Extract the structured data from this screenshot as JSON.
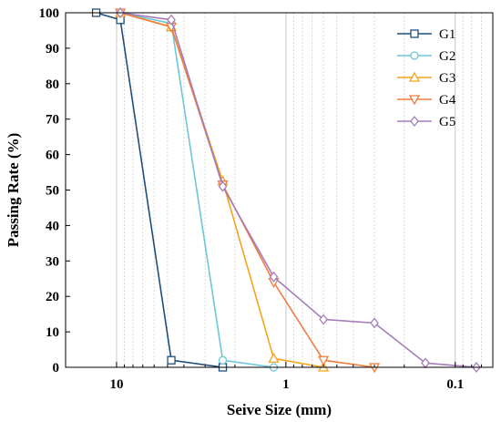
{
  "chart_data": {
    "type": "line",
    "xlabel": "Seive Size (mm)",
    "ylabel": "Passing Rate  (%)",
    "x_scale": "log",
    "x_reversed": true,
    "xlim": [
      20,
      0.06
    ],
    "ylim": [
      0,
      100
    ],
    "x_ticks": [
      {
        "value": 10,
        "label": "10"
      },
      {
        "value": 1,
        "label": "1"
      },
      {
        "value": 0.1,
        "label": "0.1"
      }
    ],
    "y_ticks": [
      0,
      10,
      20,
      30,
      40,
      50,
      60,
      70,
      80,
      90,
      100
    ],
    "grid": "vertical-minor-dotted",
    "legend_position": "top-right",
    "series": [
      {
        "name": "G1",
        "color": "#1f4e79",
        "marker": "square",
        "points": [
          [
            13.2,
            100
          ],
          [
            9.5,
            98
          ],
          [
            4.75,
            2
          ],
          [
            2.36,
            0
          ]
        ]
      },
      {
        "name": "G2",
        "color": "#6ec6d8",
        "marker": "circle",
        "points": [
          [
            9.5,
            100
          ],
          [
            4.75,
            97
          ],
          [
            2.36,
            2
          ],
          [
            1.18,
            0
          ]
        ]
      },
      {
        "name": "G3",
        "color": "#f5a31a",
        "marker": "triangle-up",
        "points": [
          [
            9.5,
            100
          ],
          [
            4.75,
            96
          ],
          [
            2.36,
            52.5
          ],
          [
            1.18,
            2.5
          ],
          [
            0.6,
            0
          ]
        ]
      },
      {
        "name": "G4",
        "color": "#ef7d3c",
        "marker": "triangle-down",
        "points": [
          [
            9.5,
            100
          ],
          [
            4.75,
            96
          ],
          [
            2.36,
            51.5
          ],
          [
            1.18,
            24
          ],
          [
            0.6,
            2
          ],
          [
            0.3,
            0
          ]
        ]
      },
      {
        "name": "G5",
        "color": "#a57dba",
        "marker": "diamond",
        "points": [
          [
            9.5,
            100
          ],
          [
            4.75,
            98
          ],
          [
            2.36,
            51
          ],
          [
            1.18,
            25.5
          ],
          [
            0.6,
            13.5
          ],
          [
            0.3,
            12.5
          ],
          [
            0.15,
            1.2
          ],
          [
            0.075,
            0
          ]
        ]
      }
    ]
  }
}
